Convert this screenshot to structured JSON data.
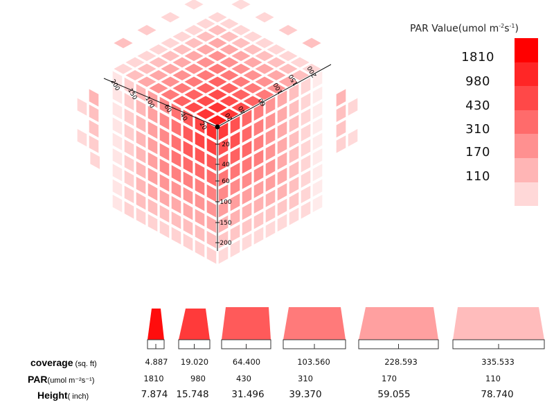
{
  "legend": {
    "title": "PAR Value(umol m",
    "title_sup1": "-2",
    "title_mid": "s",
    "title_sup2": "-1",
    "title_end": ")",
    "values": [
      "1810",
      "980",
      "430",
      "310",
      "170",
      "110"
    ],
    "colors": [
      "#ff0000",
      "#ff2626",
      "#ff4848",
      "#ff6b6b",
      "#ff9090",
      "#ffb5b5",
      "#ffd8d8"
    ]
  },
  "axes": {
    "vertical_ticks": [
      "20",
      "40",
      "60",
      "100",
      "150",
      "200"
    ],
    "left_ticks": [
      "20",
      "40",
      "60",
      "100",
      "150",
      "200"
    ],
    "right_ticks": [
      "20",
      "40",
      "60",
      "100",
      "150",
      "200"
    ]
  },
  "table": {
    "coverage_label": "coverage",
    "coverage_unit": " (sq. ft)",
    "par_label": "PAR",
    "par_unit": "(umol m⁻²s⁻¹)",
    "height_label": "Height",
    "height_unit": "( inch)",
    "columns": [
      {
        "coverage": "4.887",
        "par": "1810",
        "height": "7.874",
        "fill": "#ff0d0d"
      },
      {
        "coverage": "19.020",
        "par": "980",
        "height": "15.748",
        "fill": "#ff3a3a"
      },
      {
        "coverage": "64.400",
        "par": "430",
        "height": "31.496",
        "fill": "#ff5a5a"
      },
      {
        "coverage": "103.560",
        "par": "310",
        "height": "39.370",
        "fill": "#ff7a7a"
      },
      {
        "coverage": "228.593",
        "par": "170",
        "height": "59.055",
        "fill": "#ffa0a0"
      },
      {
        "coverage": "335.533",
        "par": "110",
        "height": "78.740",
        "fill": "#ffbcbc"
      }
    ]
  }
}
